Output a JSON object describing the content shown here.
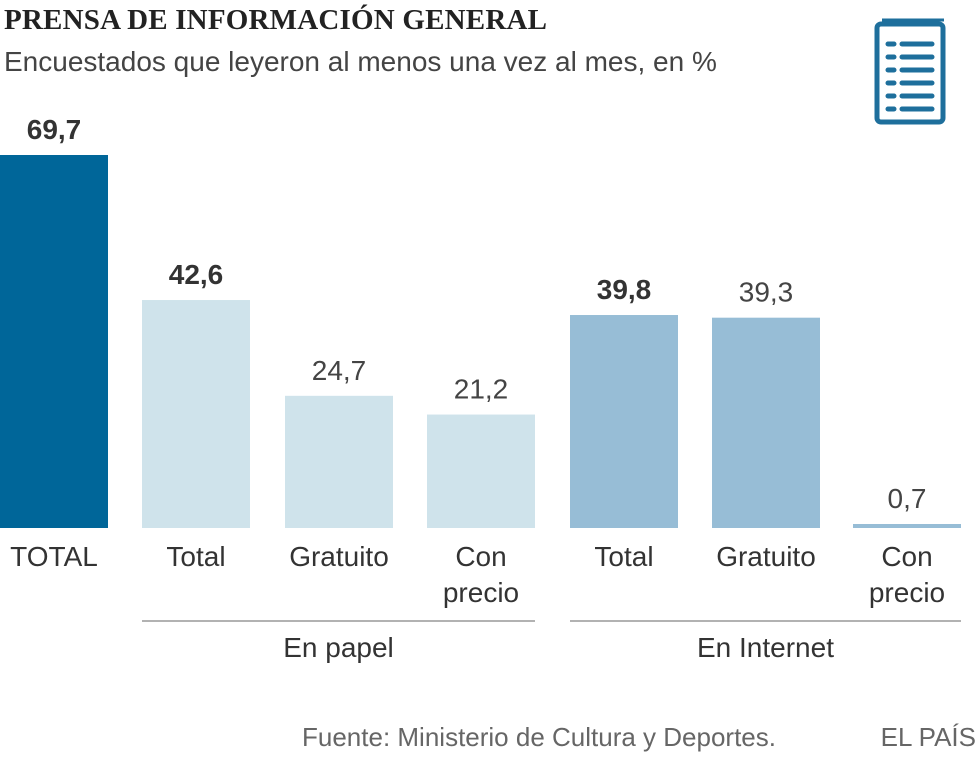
{
  "chart_data": {
    "type": "bar",
    "title": "PRENSA DE INFORMACIÓN GENERAL",
    "subtitle": "Encuestados que leyeron al menos una vez al mes, en %",
    "categories": [
      "TOTAL",
      "Total",
      "Gratuito",
      "Con precio",
      "Total",
      "Gratuito",
      "Con precio"
    ],
    "values": [
      69.7,
      42.6,
      24.7,
      21.2,
      39.8,
      39.3,
      0.7
    ],
    "value_labels": [
      "69,7",
      "42,6",
      "24,7",
      "21,2",
      "39,8",
      "39,3",
      "0,7"
    ],
    "bold_labels": [
      true,
      true,
      false,
      false,
      true,
      false,
      false
    ],
    "bar_colors": [
      "#006699",
      "#cfe3eb",
      "#cfe3eb",
      "#cfe3eb",
      "#97bdd6",
      "#97bdd6",
      "#97bdd6"
    ],
    "groups": [
      {
        "name": "En papel",
        "members": [
          1,
          2,
          3
        ]
      },
      {
        "name": "En Internet",
        "members": [
          4,
          5,
          6
        ]
      }
    ],
    "ylim": [
      0,
      70
    ],
    "xlabel": "",
    "ylabel": ""
  },
  "icon": "newspaper-document-icon",
  "source": "Fuente: Ministerio de Cultura y Deportes.",
  "brand": "EL PAÍS",
  "colors": {
    "icon": "#1e6f9c",
    "group_line": "#999999",
    "text": "#333333"
  }
}
